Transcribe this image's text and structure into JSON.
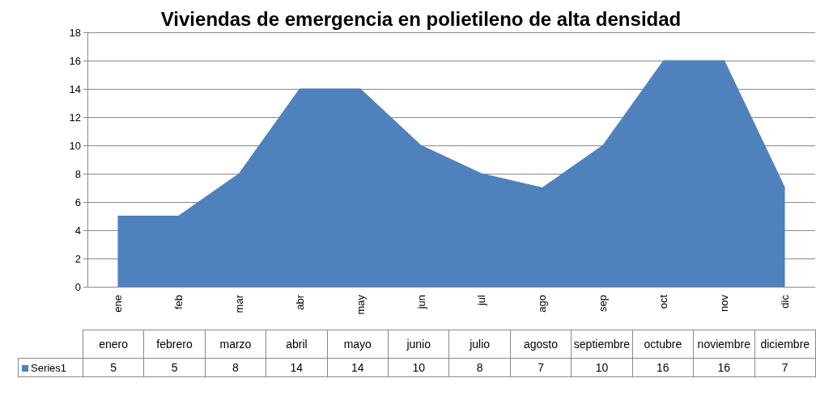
{
  "chart_data": {
    "type": "area",
    "title": "Viviendas de emergencia en polietileno de alta densidad",
    "categories": [
      "ene",
      "feb",
      "mar",
      "abr",
      "may",
      "jun",
      "jul",
      "ago",
      "sep",
      "oct",
      "nov",
      "dic"
    ],
    "series": [
      {
        "name": "Series1",
        "color": "#4f81bd",
        "values": [
          5,
          5,
          8,
          14,
          14,
          10,
          8,
          7,
          10,
          16,
          16,
          7
        ]
      }
    ],
    "annotations": [
      "enero",
      "febrero",
      "marzo",
      "abril",
      "mayo",
      "junio",
      "julio",
      "agosto",
      "septiembre",
      "octubre",
      "noviembre",
      "diciembre"
    ],
    "ylim": [
      0,
      18
    ],
    "yticks": [
      0,
      2,
      4,
      6,
      8,
      10,
      12,
      14,
      16,
      18
    ],
    "grid": "y",
    "legend": "bottom left",
    "marker": "none",
    "data_labels": true
  }
}
